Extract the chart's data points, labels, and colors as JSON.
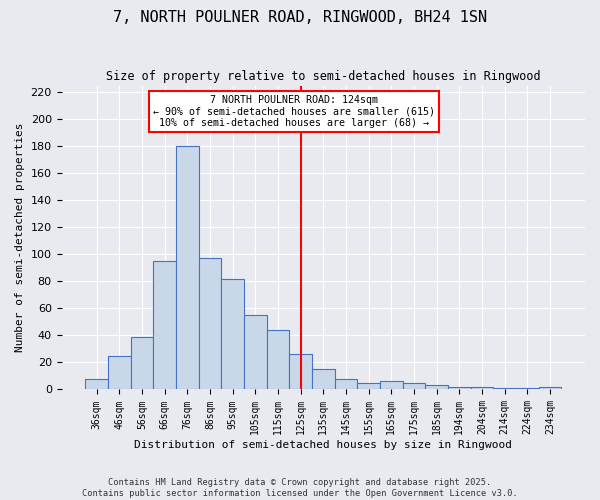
{
  "title": "7, NORTH POULNER ROAD, RINGWOOD, BH24 1SN",
  "subtitle": "Size of property relative to semi-detached houses in Ringwood",
  "xlabel": "Distribution of semi-detached houses by size in Ringwood",
  "ylabel": "Number of semi-detached properties",
  "categories": [
    "36sqm",
    "46sqm",
    "56sqm",
    "66sqm",
    "76sqm",
    "86sqm",
    "95sqm",
    "105sqm",
    "115sqm",
    "125sqm",
    "135sqm",
    "145sqm",
    "155sqm",
    "165sqm",
    "175sqm",
    "185sqm",
    "194sqm",
    "204sqm",
    "214sqm",
    "224sqm",
    "234sqm"
  ],
  "values": [
    8,
    25,
    39,
    95,
    180,
    97,
    82,
    55,
    44,
    26,
    15,
    8,
    5,
    6,
    5,
    3,
    2,
    2,
    1,
    1,
    2
  ],
  "bar_color": "#c8d8e8",
  "bar_edge_color": "#4472c4",
  "vline_color": "red",
  "vline_pos": 9.0,
  "annotation_text": "7 NORTH POULNER ROAD: 124sqm\n← 90% of semi-detached houses are smaller (615)\n10% of semi-detached houses are larger (68) →",
  "annotation_box_color": "white",
  "annotation_box_edge": "red",
  "ylim": [
    0,
    225
  ],
  "yticks": [
    0,
    20,
    40,
    60,
    80,
    100,
    120,
    140,
    160,
    180,
    200,
    220
  ],
  "background_color": "#e8eaf0",
  "grid_color": "white",
  "footer_line1": "Contains HM Land Registry data © Crown copyright and database right 2025.",
  "footer_line2": "Contains public sector information licensed under the Open Government Licence v3.0."
}
